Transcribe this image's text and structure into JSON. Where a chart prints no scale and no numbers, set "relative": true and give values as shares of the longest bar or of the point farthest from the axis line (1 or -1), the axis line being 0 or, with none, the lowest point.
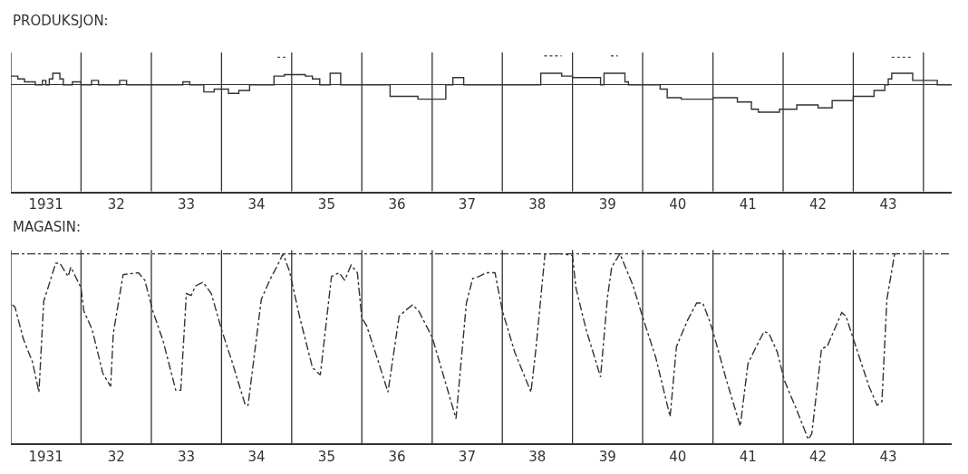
{
  "chart_data": [
    {
      "type": "step",
      "title": "PRODUKSJON:",
      "relative": true,
      "xlim": [
        "1931-01-01",
        "1944-05-27"
      ],
      "xticks": [
        {
          "value": "1931-07-02",
          "label": "1931"
        },
        {
          "value": "1932-07-02",
          "label": "32"
        },
        {
          "value": "1933-07-02",
          "label": "33"
        },
        {
          "value": "1934-07-02",
          "label": "34"
        },
        {
          "value": "1935-07-02",
          "label": "35"
        },
        {
          "value": "1936-07-02",
          "label": "36"
        },
        {
          "value": "1937-07-02",
          "label": "37"
        },
        {
          "value": "1938-07-02",
          "label": "38"
        },
        {
          "value": "1939-07-02",
          "label": "39"
        },
        {
          "value": "1940-07-02",
          "label": "40"
        },
        {
          "value": "1941-07-02",
          "label": "41"
        },
        {
          "value": "1942-07-02",
          "label": "42"
        },
        {
          "value": "1943-07-02",
          "label": "43"
        }
      ],
      "series": [
        {
          "color": "#333333",
          "line_style": "solid",
          "x": [
            "1931-01-01",
            "1931-02-06",
            "1931-03-13",
            "1931-05-08",
            "1931-06-14",
            "1931-07-02",
            "1931-07-20",
            "1931-08-07",
            "1931-09-13",
            "1931-10-01",
            "1931-11-17",
            "1932-01-01",
            "1932-02-25",
            "1932-04-01",
            "1932-07-20",
            "1932-08-25",
            "1933-06-14",
            "1933-07-20",
            "1933-10-01",
            "1933-11-24",
            "1934-02-06",
            "1934-04-01",
            "1934-05-27",
            "1934-10-01",
            "1934-11-24",
            "1935-03-13",
            "1935-04-19",
            "1935-05-27",
            "1935-07-20",
            "1935-09-13",
            "1936-05-27",
            "1936-10-19",
            "1937-03-13",
            "1937-04-19",
            "1937-06-14",
            "1938-07-20",
            "1938-11-06",
            "1939-01-01",
            "1939-05-27",
            "1939-06-14",
            "1939-10-01",
            "1939-10-19",
            "1940-04-01",
            "1940-05-08",
            "1940-07-20",
            "1941-01-01",
            "1941-05-08",
            "1941-07-20",
            "1941-08-25",
            "1941-12-13",
            "1942-03-13",
            "1942-07-02",
            "1942-09-13",
            "1943-01-01",
            "1943-04-19",
            "1943-06-14",
            "1943-07-02",
            "1943-07-20",
            "1943-11-06",
            "1944-03-13",
            "1944-05-27"
          ],
          "values": [
            0.3,
            0.2,
            0.1,
            0,
            0.15,
            0,
            0.2,
            0.4,
            0.2,
            0,
            0.1,
            0,
            0.15,
            0,
            0.15,
            0,
            0.1,
            0,
            -0.25,
            -0.15,
            -0.3,
            -0.2,
            0,
            0.3,
            0.35,
            0.3,
            0.2,
            0,
            0.4,
            0,
            -0.4,
            -0.5,
            0,
            0.25,
            0,
            0.4,
            0.3,
            0.25,
            0,
            0.4,
            0.1,
            0,
            -0.15,
            -0.45,
            -0.5,
            -0.45,
            -0.6,
            -0.85,
            -0.95,
            -0.85,
            -0.7,
            -0.8,
            -0.55,
            -0.4,
            -0.2,
            0,
            0.2,
            0.4,
            0.15,
            0,
            0
          ]
        },
        {
          "color": "#555555",
          "line_style": "dotted",
          "x": [
            "1934-10-19",
            "1934-12-13"
          ],
          "values": [
            0.95,
            0.95
          ]
        },
        {
          "color": "#555555",
          "line_style": "dotted",
          "x": [
            "1938-08-07",
            "1938-11-06"
          ],
          "values": [
            1,
            1
          ]
        },
        {
          "color": "#555555",
          "line_style": "dotted",
          "x": [
            "1939-07-20",
            "1939-08-25"
          ],
          "values": [
            1,
            1
          ]
        },
        {
          "color": "#555555",
          "line_style": "dotted",
          "x": [
            "1943-07-20",
            "1943-11-06"
          ],
          "values": [
            0.95,
            0.95
          ]
        }
      ],
      "ref_lines": [
        {
          "axis": "x",
          "value": "1931-01-01"
        },
        {
          "axis": "x",
          "value": "1932-01-01"
        },
        {
          "axis": "x",
          "value": "1933-01-01"
        },
        {
          "axis": "x",
          "value": "1934-01-01"
        },
        {
          "axis": "x",
          "value": "1935-01-01"
        },
        {
          "axis": "x",
          "value": "1936-01-01"
        },
        {
          "axis": "x",
          "value": "1937-01-01"
        },
        {
          "axis": "x",
          "value": "1938-01-01"
        },
        {
          "axis": "x",
          "value": "1939-01-01"
        },
        {
          "axis": "x",
          "value": "1940-01-01"
        },
        {
          "axis": "x",
          "value": "1941-01-01"
        },
        {
          "axis": "x",
          "value": "1942-01-01"
        },
        {
          "axis": "x",
          "value": "1943-01-01"
        },
        {
          "axis": "x",
          "value": "1944-01-01"
        }
      ]
    },
    {
      "type": "line",
      "title": "MAGASIN:",
      "relative": true,
      "xlim": [
        "1931-01-01",
        "1944-05-27"
      ],
      "xticks": [
        {
          "value": "1931-07-02",
          "label": "1931"
        },
        {
          "value": "1932-07-02",
          "label": "32"
        },
        {
          "value": "1933-07-02",
          "label": "33"
        },
        {
          "value": "1934-07-02",
          "label": "34"
        },
        {
          "value": "1935-07-02",
          "label": "35"
        },
        {
          "value": "1936-07-02",
          "label": "36"
        },
        {
          "value": "1937-07-02",
          "label": "37"
        },
        {
          "value": "1938-07-02",
          "label": "38"
        },
        {
          "value": "1939-07-02",
          "label": "39"
        },
        {
          "value": "1940-07-02",
          "label": "40"
        },
        {
          "value": "1941-07-02",
          "label": "41"
        },
        {
          "value": "1942-07-02",
          "label": "42"
        },
        {
          "value": "1943-07-02",
          "label": "43"
        }
      ],
      "series": [
        {
          "color": "#333333",
          "line_style": "dashed",
          "x": [
            "1931-01-08",
            "1931-01-22",
            "1931-03-07",
            "1931-04-23",
            "1931-05-27",
            "1931-06-21",
            "1931-07-13",
            "1931-08-22",
            "1931-09-13",
            "1931-10-26",
            "1931-11-09",
            "1932-01-01",
            "1932-01-15",
            "1932-02-28",
            "1932-04-23",
            "1932-06-03",
            "1932-06-17",
            "1932-08-07",
            "1932-10-26",
            "1932-11-28",
            "1933-01-08",
            "1933-03-03",
            "1933-05-08",
            "1933-06-03",
            "1933-07-02",
            "1933-07-27",
            "1933-08-18",
            "1933-09-27",
            "1933-11-09",
            "1934-01-01",
            "1934-02-25",
            "1934-05-05",
            "1934-05-19",
            "1934-07-27",
            "1934-09-13",
            "1934-10-15",
            "1934-11-17",
            "1934-12-20",
            "1935-02-13",
            "1935-04-19",
            "1935-05-30",
            "1935-07-27",
            "1935-09-05",
            "1935-10-04",
            "1935-11-06",
            "1935-12-09",
            "1936-01-01",
            "1936-01-26",
            "1936-03-21",
            "1936-05-16",
            "1936-07-13",
            "1936-08-14",
            "1936-09-20",
            "1936-10-22",
            "1937-01-01",
            "1937-02-25",
            "1937-05-05",
            "1937-06-28",
            "1937-07-31",
            "1937-09-02",
            "1937-10-08",
            "1937-11-24",
            "1938-01-01",
            "1938-03-07",
            "1938-05-30",
            "1938-06-25",
            "1938-08-11",
            "1938-11-17",
            "1939-01-01",
            "1939-01-19",
            "1939-03-13",
            "1939-05-27",
            "1939-07-02",
            "1939-07-24",
            "1939-09-05",
            "1939-11-13",
            "1939-12-28",
            "1940-03-10",
            "1940-05-23",
            "1940-06-25",
            "1940-08-22",
            "1940-10-08",
            "1940-11-09",
            "1940-12-13",
            "1941-01-01",
            "1941-03-10",
            "1941-05-23",
            "1941-07-02",
            "1941-08-14",
            "1941-09-24",
            "1941-10-19",
            "1941-12-02",
            "1942-01-08",
            "1942-03-07",
            "1942-05-12",
            "1942-05-30",
            "1942-07-20",
            "1942-08-18",
            "1942-11-02",
            "1942-11-24",
            "1943-01-08",
            "1943-03-24",
            "1943-05-05",
            "1943-05-30",
            "1943-06-25",
            "1943-08-04"
          ],
          "values": [
            0.73,
            0.72,
            0.55,
            0.43,
            0.27,
            0.75,
            0.82,
            0.95,
            0.95,
            0.88,
            0.93,
            0.82,
            0.7,
            0.6,
            0.37,
            0.3,
            0.58,
            0.89,
            0.9,
            0.86,
            0.7,
            0.54,
            0.28,
            0.28,
            0.79,
            0.78,
            0.83,
            0.85,
            0.79,
            0.6,
            0.43,
            0.2,
            0.2,
            0.76,
            0.87,
            0.93,
            1.0,
            0.91,
            0.66,
            0.4,
            0.36,
            0.88,
            0.9,
            0.86,
            0.94,
            0.9,
            0.66,
            0.62,
            0.45,
            0.27,
            0.67,
            0.7,
            0.73,
            0.7,
            0.56,
            0.37,
            0.13,
            0.74,
            0.87,
            0.88,
            0.9,
            0.9,
            0.7,
            0.48,
            0.27,
            0.5,
            1.0,
            1.0,
            0.99,
            0.82,
            0.6,
            0.35,
            0.77,
            0.93,
            1.0,
            0.83,
            0.68,
            0.45,
            0.14,
            0.51,
            0.65,
            0.74,
            0.74,
            0.65,
            0.59,
            0.34,
            0.09,
            0.42,
            0.51,
            0.59,
            0.58,
            0.48,
            0.33,
            0.19,
            0.02,
            0.05,
            0.5,
            0.51,
            0.69,
            0.67,
            0.53,
            0.3,
            0.2,
            0.22,
            0.76,
            1.0
          ]
        }
      ],
      "ref_lines": [
        {
          "axis": "y",
          "value": 1,
          "line_style": "dashed"
        },
        {
          "axis": "x",
          "value": "1931-01-01"
        },
        {
          "axis": "x",
          "value": "1932-01-01"
        },
        {
          "axis": "x",
          "value": "1933-01-01"
        },
        {
          "axis": "x",
          "value": "1934-01-01"
        },
        {
          "axis": "x",
          "value": "1935-01-01"
        },
        {
          "axis": "x",
          "value": "1936-01-01"
        },
        {
          "axis": "x",
          "value": "1937-01-01"
        },
        {
          "axis": "x",
          "value": "1938-01-01"
        },
        {
          "axis": "x",
          "value": "1939-01-01"
        },
        {
          "axis": "x",
          "value": "1940-01-01"
        },
        {
          "axis": "x",
          "value": "1941-01-01"
        },
        {
          "axis": "x",
          "value": "1942-01-01"
        },
        {
          "axis": "x",
          "value": "1943-01-01"
        },
        {
          "axis": "x",
          "value": "1944-01-01"
        }
      ]
    }
  ]
}
